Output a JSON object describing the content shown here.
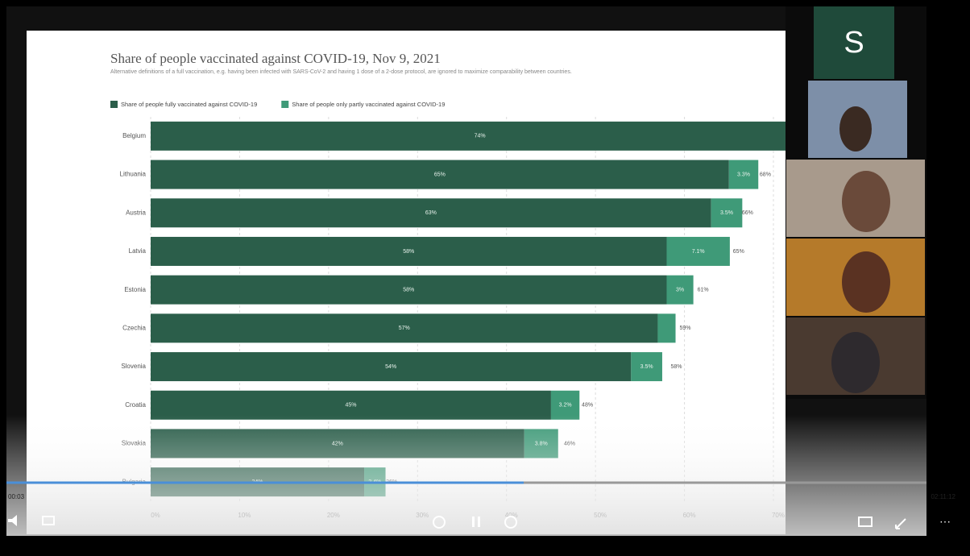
{
  "player": {
    "tile_letter": "S",
    "time_elapsed": "00:03",
    "time_total": "02:11:12"
  },
  "chart_data": {
    "type": "stacked-bar-horizontal",
    "title": "Share of people vaccinated against COVID-19, Nov 9, 2021",
    "subtitle": "Alternative definitions of a full vaccination, e.g. having been infected with SARS-CoV-2 and having 1 dose of a 2-dose protocol, are ignored to maximize comparability between countries.",
    "categories": [
      "Belgium",
      "Lithuania",
      "Austria",
      "Latvia",
      "Estonia",
      "Czechia",
      "Slovenia",
      "Croatia",
      "Slovakia",
      "Bulgaria"
    ],
    "series": [
      {
        "name": "Share of people fully vaccinated against COVID-19",
        "color": "#2b5e4a",
        "values": [
          74,
          65,
          63,
          58,
          58,
          57,
          54,
          45,
          42,
          24
        ],
        "value_labels": [
          "74%",
          "65%",
          "63%",
          "58%",
          "58%",
          "57%",
          "54%",
          "45%",
          "42%",
          "24%"
        ]
      },
      {
        "name": "Share of people only partly vaccinated against COVID-19",
        "color": "#3f9a78",
        "values": [
          null,
          3.3,
          3.5,
          7.1,
          3,
          2,
          3.5,
          3.2,
          3.8,
          2.4
        ],
        "value_labels": [
          null,
          "3.3%",
          "3.5%",
          "7.1%",
          "3%",
          null,
          "3.5%",
          "3.2%",
          "3.8%",
          "2.4%"
        ]
      }
    ],
    "totals": [
      null,
      68,
      66,
      65,
      61,
      59,
      58,
      48,
      46,
      26
    ],
    "total_labels": [
      null,
      "68%",
      "66%",
      "65%",
      "61%",
      "59%",
      "58%",
      "48%",
      "46%",
      "26%"
    ],
    "xlim": [
      0,
      70
    ],
    "xticks": [
      {
        "value": 0,
        "label": "0%"
      },
      {
        "value": 10,
        "label": "10%"
      },
      {
        "value": 20,
        "label": "20%"
      },
      {
        "value": 30,
        "label": "30%"
      },
      {
        "value": 40,
        "label": "40%"
      },
      {
        "value": 50,
        "label": "50%"
      },
      {
        "value": 60,
        "label": "60%"
      },
      {
        "value": 70,
        "label": "70%"
      }
    ],
    "grid": true
  }
}
